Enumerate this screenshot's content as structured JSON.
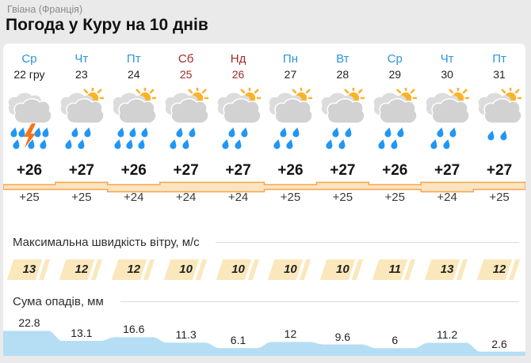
{
  "header": {
    "breadcrumb": "Гвіана (Франція)",
    "title": "Погода у Куру на 10 днів"
  },
  "sections": {
    "wind_title": "Максимальна швидкість вітру, м/с",
    "precip_title": "Сума опадів, мм"
  },
  "colors": {
    "weekday": "#2A96D8",
    "weekend": "#9E2B25",
    "date": "#1F1F1F",
    "temp_band_fill": "#FBE4C0",
    "temp_band_stroke": "#F5A44C",
    "wind_chip": "#FAE8BC",
    "precip_fill": "#B5DEF5",
    "cloud_back": "#DCDCDC",
    "cloud_front": "#D2D2D2",
    "sun": "#F9B42C",
    "drop": "#2196F3",
    "bolt": "#F7731B"
  },
  "chart_data": {
    "type": "table",
    "columns": [
      "day",
      "date",
      "icon",
      "tmax",
      "tmin",
      "wind_ms",
      "precip_mm"
    ],
    "days": [
      {
        "day": "Ср",
        "date": "22 гру",
        "weekend": false,
        "icon": {
          "name": "thunderstorm-rain-icon",
          "sun": false,
          "bolt": true,
          "drops": 7
        },
        "tmax": "+26",
        "tmin": "+25",
        "tmax_v": 26,
        "tmin_v": 25,
        "wind": "13",
        "wind_v": 13,
        "precip": "22.8",
        "precip_v": 22.8
      },
      {
        "day": "Чт",
        "date": "23",
        "weekend": false,
        "icon": {
          "name": "sun-cloud-rain-icon",
          "sun": true,
          "bolt": false,
          "drops": 4
        },
        "tmax": "+27",
        "tmin": "+25",
        "tmax_v": 27,
        "tmin_v": 25,
        "wind": "12",
        "wind_v": 12,
        "precip": "13.1",
        "precip_v": 13.1
      },
      {
        "day": "Пт",
        "date": "24",
        "weekend": false,
        "icon": {
          "name": "sun-cloud-heavy-rain-icon",
          "sun": true,
          "bolt": false,
          "drops": 6
        },
        "tmax": "+26",
        "tmin": "+24",
        "tmax_v": 26,
        "tmin_v": 24,
        "wind": "12",
        "wind_v": 12,
        "precip": "16.6",
        "precip_v": 16.6
      },
      {
        "day": "Сб",
        "date": "25",
        "weekend": true,
        "icon": {
          "name": "sun-cloud-rain-icon",
          "sun": true,
          "bolt": false,
          "drops": 4
        },
        "tmax": "+27",
        "tmin": "+24",
        "tmax_v": 27,
        "tmin_v": 24,
        "wind": "10",
        "wind_v": 10,
        "precip": "11.3",
        "precip_v": 11.3
      },
      {
        "day": "Нд",
        "date": "26",
        "weekend": true,
        "icon": {
          "name": "sun-cloud-rain-icon",
          "sun": true,
          "bolt": false,
          "drops": 4
        },
        "tmax": "+27",
        "tmin": "+24",
        "tmax_v": 27,
        "tmin_v": 24,
        "wind": "10",
        "wind_v": 10,
        "precip": "6.1",
        "precip_v": 6.1
      },
      {
        "day": "Пн",
        "date": "27",
        "weekend": false,
        "icon": {
          "name": "sun-cloud-rain-icon",
          "sun": true,
          "bolt": false,
          "drops": 4
        },
        "tmax": "+26",
        "tmin": "+25",
        "tmax_v": 26,
        "tmin_v": 25,
        "wind": "10",
        "wind_v": 10,
        "precip": "12",
        "precip_v": 12
      },
      {
        "day": "Вт",
        "date": "28",
        "weekend": false,
        "icon": {
          "name": "sun-cloud-rain-icon",
          "sun": true,
          "bolt": false,
          "drops": 4
        },
        "tmax": "+27",
        "tmin": "+25",
        "tmax_v": 27,
        "tmin_v": 25,
        "wind": "10",
        "wind_v": 10,
        "precip": "9.6",
        "precip_v": 9.6
      },
      {
        "day": "Ср",
        "date": "29",
        "weekend": false,
        "icon": {
          "name": "sun-cloud-rain-icon",
          "sun": true,
          "bolt": false,
          "drops": 4
        },
        "tmax": "+26",
        "tmin": "+25",
        "tmax_v": 26,
        "tmin_v": 25,
        "wind": "11",
        "wind_v": 11,
        "precip": "6",
        "precip_v": 6
      },
      {
        "day": "Чт",
        "date": "30",
        "weekend": false,
        "icon": {
          "name": "sun-cloud-rain-icon",
          "sun": true,
          "bolt": false,
          "drops": 4
        },
        "tmax": "+27",
        "tmin": "+24",
        "tmax_v": 27,
        "tmin_v": 24,
        "wind": "13",
        "wind_v": 13,
        "precip": "11.2",
        "precip_v": 11.2
      },
      {
        "day": "Пт",
        "date": "31",
        "weekend": false,
        "icon": {
          "name": "sun-cloud-light-rain-icon",
          "sun": true,
          "bolt": false,
          "drops": 2
        },
        "tmax": "+27",
        "tmin": "+25",
        "tmax_v": 27,
        "tmin_v": 25,
        "wind": "12",
        "wind_v": 12,
        "precip": "2.6",
        "precip_v": 2.6
      }
    ]
  }
}
